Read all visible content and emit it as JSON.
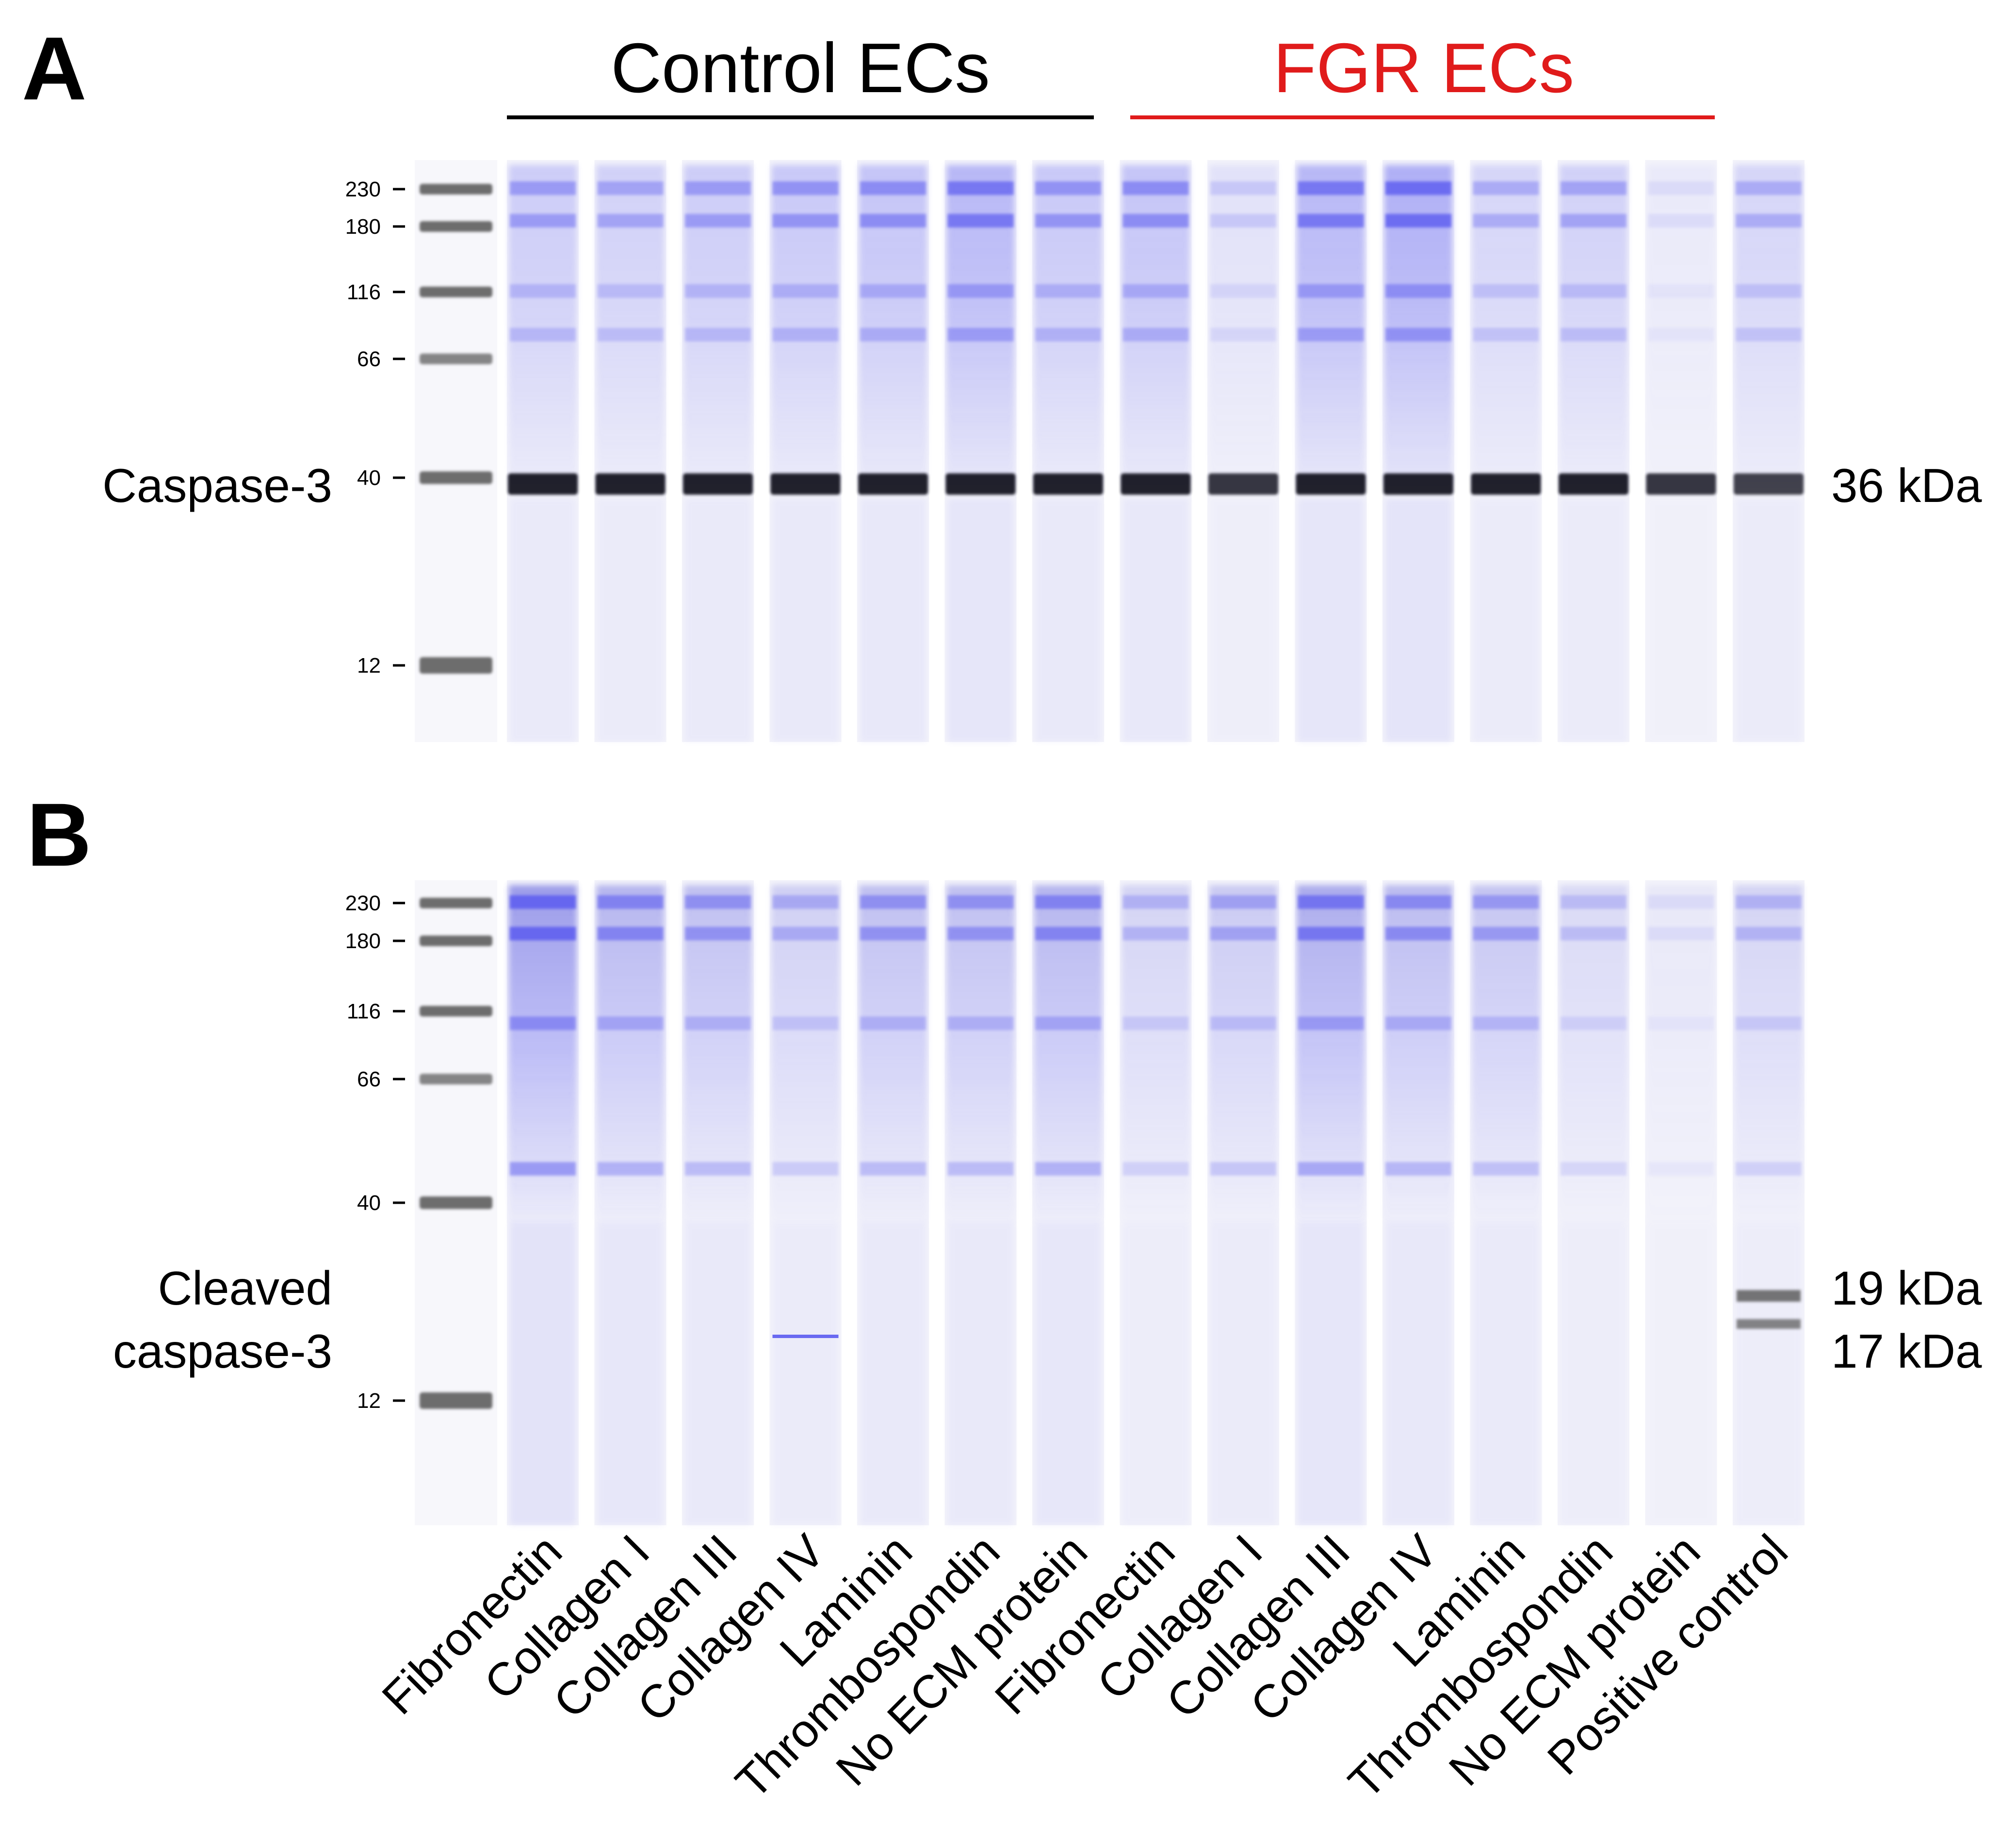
{
  "colors": {
    "control": "#000000",
    "fgr": "#e01b1b",
    "band_blue": "#5b5bf0",
    "band_dark": "#151520",
    "ladder": "#555555",
    "lane_bg": "#f3f3fa"
  },
  "groups": {
    "control": "Control ECs",
    "fgr": "FGR ECs"
  },
  "lanes": [
    "Fibronectin",
    "Collagen I",
    "Collagen III",
    "Collagen IV",
    "Laminin",
    "Thrombospondin",
    "No ECM protein",
    "Fibronectin",
    "Collagen I",
    "Collagen III",
    "Collagen IV",
    "Laminin",
    "Thrombospondin",
    "No ECM protein",
    "Positive control"
  ],
  "ladder_kda": [
    "230",
    "180",
    "116",
    "66",
    "40",
    "12"
  ],
  "panelA": {
    "letter": "A",
    "target": "Caspase-3",
    "band_label": "36 kDa",
    "band_kda": 36,
    "band_strength": [
      0.95,
      0.95,
      0.95,
      0.95,
      0.95,
      0.95,
      0.95,
      0.95,
      0.85,
      0.95,
      0.95,
      0.95,
      0.95,
      0.85,
      0.8
    ],
    "smear_strength": [
      0.45,
      0.4,
      0.45,
      0.5,
      0.55,
      0.7,
      0.5,
      0.55,
      0.2,
      0.7,
      0.8,
      0.35,
      0.4,
      0.1,
      0.35
    ]
  },
  "panelB": {
    "letter": "B",
    "target_line1": "Cleaved",
    "target_line2": "caspase-3",
    "band_label_1": "19 kDa",
    "band_label_2": "17 kDa",
    "band_kda": [
      19,
      17
    ],
    "smear_strength": [
      0.85,
      0.6,
      0.5,
      0.35,
      0.5,
      0.5,
      0.6,
      0.3,
      0.4,
      0.7,
      0.55,
      0.45,
      0.25,
      0.1,
      0.3
    ]
  }
}
